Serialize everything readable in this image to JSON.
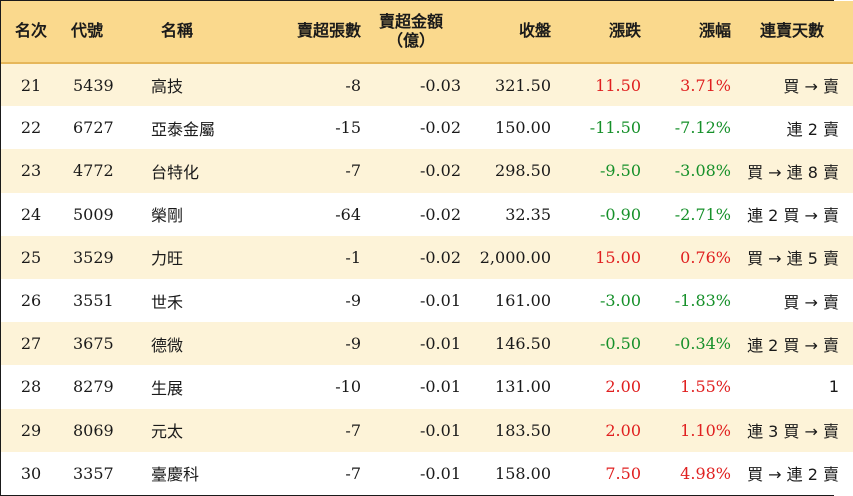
{
  "headers": {
    "rank": "名次",
    "code": "代號",
    "name": "名稱",
    "net_sell_lots": "賣超張數",
    "net_sell_amount_line1": "賣超金額",
    "net_sell_amount_line2": "（億）",
    "close": "收盤",
    "change": "漲跌",
    "change_pct": "漲幅",
    "consecutive_sell_days": "連賣天數"
  },
  "colors": {
    "header_bg": "#fad98d",
    "row_odd_bg": "#fdf3d8",
    "up": "#e02020",
    "down": "#16902a"
  },
  "rows": [
    {
      "rank": "21",
      "code": "5439",
      "name": "高技",
      "lots": "-8",
      "amount": "-0.03",
      "close": "321.50",
      "change": "11.50",
      "pct": "3.71%",
      "trend": "up",
      "days": "買 → 賣"
    },
    {
      "rank": "22",
      "code": "6727",
      "name": "亞泰金屬",
      "lots": "-15",
      "amount": "-0.02",
      "close": "150.00",
      "change": "-11.50",
      "pct": "-7.12%",
      "trend": "down",
      "days": "連 2 賣"
    },
    {
      "rank": "23",
      "code": "4772",
      "name": "台特化",
      "lots": "-7",
      "amount": "-0.02",
      "close": "298.50",
      "change": "-9.50",
      "pct": "-3.08%",
      "trend": "down",
      "days": "買 → 連 8 賣"
    },
    {
      "rank": "24",
      "code": "5009",
      "name": "榮剛",
      "lots": "-64",
      "amount": "-0.02",
      "close": "32.35",
      "change": "-0.90",
      "pct": "-2.71%",
      "trend": "down",
      "days": "連 2 買 → 賣"
    },
    {
      "rank": "25",
      "code": "3529",
      "name": "力旺",
      "lots": "-1",
      "amount": "-0.02",
      "close": "2,000.00",
      "change": "15.00",
      "pct": "0.76%",
      "trend": "up",
      "days": "買 → 連 5 賣"
    },
    {
      "rank": "26",
      "code": "3551",
      "name": "世禾",
      "lots": "-9",
      "amount": "-0.01",
      "close": "161.00",
      "change": "-3.00",
      "pct": "-1.83%",
      "trend": "down",
      "days": "買 → 賣"
    },
    {
      "rank": "27",
      "code": "3675",
      "name": "德微",
      "lots": "-9",
      "amount": "-0.01",
      "close": "146.50",
      "change": "-0.50",
      "pct": "-0.34%",
      "trend": "down",
      "days": "連 2 買 → 賣"
    },
    {
      "rank": "28",
      "code": "8279",
      "name": "生展",
      "lots": "-10",
      "amount": "-0.01",
      "close": "131.00",
      "change": "2.00",
      "pct": "1.55%",
      "trend": "up",
      "days": "1"
    },
    {
      "rank": "29",
      "code": "8069",
      "name": "元太",
      "lots": "-7",
      "amount": "-0.01",
      "close": "183.50",
      "change": "2.00",
      "pct": "1.10%",
      "trend": "up",
      "days": "連 3 買 → 賣"
    },
    {
      "rank": "30",
      "code": "3357",
      "name": "臺慶科",
      "lots": "-7",
      "amount": "-0.01",
      "close": "158.00",
      "change": "7.50",
      "pct": "4.98%",
      "trend": "up",
      "days": "買 → 連 2 賣"
    }
  ]
}
